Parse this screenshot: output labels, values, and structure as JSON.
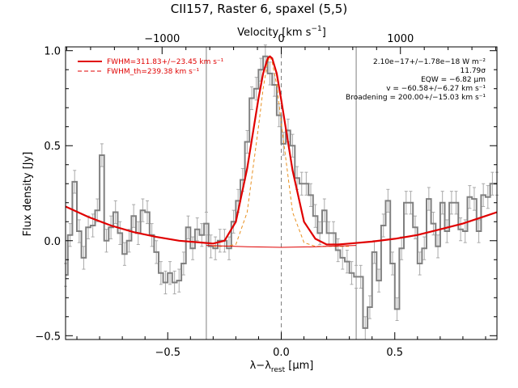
{
  "chart_data": {
    "type": "line",
    "title": "CII157, Raster 6, spaxel (5,5)",
    "xlabel": "λ−λrest [μm]",
    "xlabel_parts": {
      "main": "λ−λ",
      "sub": "rest",
      "unit": " [μm]"
    },
    "ylabel": "Flux density [Jy]",
    "top_xlabel": "Velocity [km s⁻¹]",
    "top_xlabel_parts": {
      "main": "Velocity [km s",
      "sup": "−1",
      "end": "]"
    },
    "xlim": [
      -0.95,
      0.95
    ],
    "ylim": [
      -0.52,
      1.02
    ],
    "top_xlim": [
      -1810,
      1810
    ],
    "x_ticks": [
      -0.5,
      0.0,
      0.5
    ],
    "x_tick_labels": [
      "−0.5",
      "0.0",
      "0.5"
    ],
    "y_ticks": [
      -0.5,
      0.0,
      0.5,
      1.0
    ],
    "y_tick_labels": [
      "−0.5",
      "0.0",
      "0.5",
      "1.0"
    ],
    "top_x_ticks": [
      -1000,
      0,
      1000
    ],
    "top_x_tick_labels": [
      "−1000",
      "0",
      "1000"
    ],
    "vertical_lines": [
      -0.33,
      0.33
    ],
    "center_line": 0.0,
    "legend_position": "top-left",
    "legend": [
      {
        "label": "FWHM=311.83+/−23.45 km s⁻¹",
        "style": "solid",
        "color": "#e00000"
      },
      {
        "label": "FWHM_th=239.38 km s⁻¹",
        "style": "dashed",
        "color": "#e00000"
      }
    ],
    "annotations": [
      "2.10e−17+/−1.78e−18 W m⁻²",
      "11.79σ",
      "EQW = −6.82 μm",
      "v = −60.58+/−6.27 km s⁻¹",
      "Broadening = 200.00+/−15.03 km s⁻¹"
    ],
    "colors": {
      "data": "#808080",
      "errors": "#aaaaaa",
      "fit": "#e00000",
      "thermal": "#e89020",
      "lines": "#808080"
    },
    "series": [
      {
        "role": "spectrum",
        "style": "steps",
        "x": [
          -0.95,
          -0.93,
          -0.91,
          -0.89,
          -0.87,
          -0.85,
          -0.83,
          -0.81,
          -0.79,
          -0.77,
          -0.75,
          -0.73,
          -0.71,
          -0.69,
          -0.67,
          -0.65,
          -0.63,
          -0.61,
          -0.59,
          -0.57,
          -0.55,
          -0.53,
          -0.51,
          -0.49,
          -0.47,
          -0.45,
          -0.43,
          -0.41,
          -0.39,
          -0.37,
          -0.35,
          -0.33,
          -0.31,
          -0.29,
          -0.27,
          -0.25,
          -0.23,
          -0.21,
          -0.19,
          -0.17,
          -0.15,
          -0.13,
          -0.11,
          -0.09,
          -0.07,
          -0.05,
          -0.03,
          -0.01,
          0.01,
          0.03,
          0.05,
          0.07,
          0.09,
          0.11,
          0.13,
          0.15,
          0.17,
          0.19,
          0.21,
          0.23,
          0.25,
          0.27,
          0.29,
          0.31,
          0.33,
          0.35,
          0.37,
          0.39,
          0.41,
          0.43,
          0.45,
          0.47,
          0.49,
          0.51,
          0.53,
          0.55,
          0.57,
          0.59,
          0.61,
          0.63,
          0.65,
          0.67,
          0.69,
          0.71,
          0.73,
          0.75,
          0.77,
          0.79,
          0.81,
          0.83,
          0.85,
          0.87,
          0.89,
          0.91,
          0.93,
          0.95
        ],
        "values": [
          -0.18,
          0.03,
          0.31,
          0.05,
          -0.09,
          0.07,
          0.08,
          0.16,
          0.45,
          0.0,
          0.07,
          0.15,
          0.04,
          -0.07,
          0.0,
          0.13,
          0.04,
          0.16,
          0.15,
          0.03,
          -0.06,
          -0.17,
          -0.22,
          -0.17,
          -0.22,
          -0.21,
          -0.12,
          0.07,
          -0.04,
          0.06,
          0.03,
          0.09,
          -0.03,
          -0.04,
          0.0,
          0.0,
          -0.04,
          0.1,
          0.21,
          0.32,
          0.52,
          0.75,
          0.8,
          0.9,
          0.97,
          0.88,
          0.82,
          0.66,
          0.51,
          0.58,
          0.5,
          0.33,
          0.3,
          0.3,
          0.24,
          0.13,
          0.04,
          0.16,
          0.04,
          0.04,
          -0.05,
          -0.09,
          -0.11,
          -0.17,
          -0.19,
          -0.19,
          -0.46,
          -0.35,
          -0.06,
          -0.21,
          0.08,
          0.21,
          -0.12,
          -0.36,
          -0.04,
          0.2,
          0.2,
          0.07,
          -0.12,
          -0.04,
          0.22,
          0.09,
          -0.03,
          0.2,
          0.05,
          0.2,
          0.2,
          0.06,
          0.05,
          0.23,
          0.22,
          0.05,
          0.24,
          0.23,
          0.3,
          0.3
        ],
        "errors": 0.06
      },
      {
        "role": "fit",
        "style": "solid",
        "x": [
          -0.95,
          -0.85,
          -0.75,
          -0.65,
          -0.55,
          -0.45,
          -0.35,
          -0.3,
          -0.25,
          -0.2,
          -0.15,
          -0.1,
          -0.08,
          -0.06,
          -0.05,
          -0.04,
          -0.02,
          0.0,
          0.05,
          0.1,
          0.15,
          0.2,
          0.25,
          0.3,
          0.4,
          0.5,
          0.6,
          0.7,
          0.8,
          0.9,
          0.95
        ],
        "values": [
          0.18,
          0.125,
          0.08,
          0.045,
          0.02,
          0.0,
          -0.01,
          -0.015,
          0.0,
          0.1,
          0.38,
          0.75,
          0.88,
          0.96,
          0.97,
          0.96,
          0.88,
          0.74,
          0.37,
          0.1,
          0.01,
          -0.02,
          -0.02,
          -0.015,
          -0.005,
          0.01,
          0.03,
          0.06,
          0.09,
          0.13,
          0.15
        ]
      },
      {
        "role": "thermal",
        "style": "dashed",
        "x": [
          -0.3,
          -0.25,
          -0.2,
          -0.15,
          -0.1,
          -0.08,
          -0.06,
          -0.05,
          -0.04,
          -0.02,
          0.0,
          0.05,
          0.1,
          0.15,
          0.2,
          0.25,
          0.3
        ],
        "values": [
          -0.03,
          -0.03,
          -0.02,
          0.15,
          0.6,
          0.8,
          0.94,
          0.97,
          0.94,
          0.82,
          0.62,
          0.15,
          -0.01,
          -0.03,
          -0.03,
          -0.03,
          -0.03
        ]
      },
      {
        "role": "continuum",
        "style": "solid",
        "x": [
          -0.33,
          -0.15,
          0.0,
          0.15,
          0.33
        ],
        "values": [
          -0.025,
          -0.032,
          -0.035,
          -0.032,
          -0.025
        ]
      }
    ]
  }
}
